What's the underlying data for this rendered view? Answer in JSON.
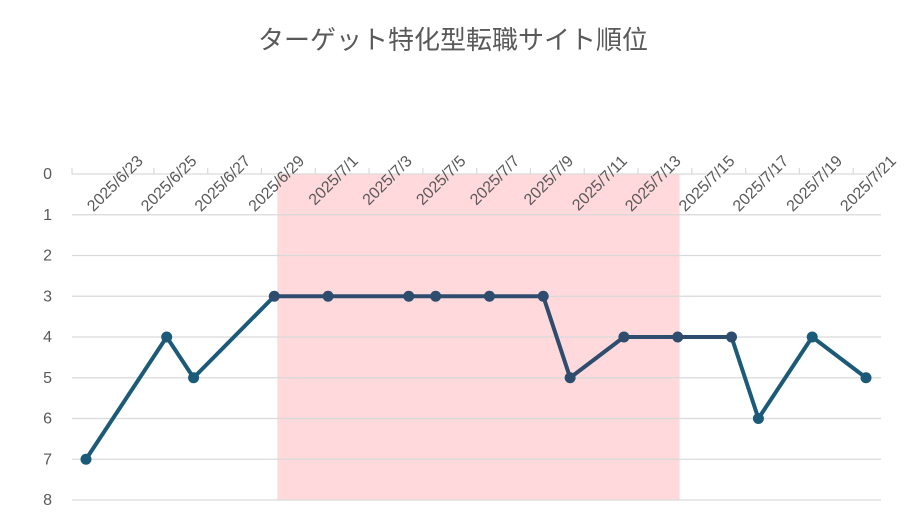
{
  "chart_data": {
    "type": "line",
    "title": "ターゲット特化型転職サイト順位",
    "xlabel": "",
    "ylabel": "",
    "x_ticks": [
      "2025/6/23",
      "2025/6/25",
      "2025/6/27",
      "2025/6/29",
      "2025/7/1",
      "2025/7/3",
      "2025/7/5",
      "2025/7/7",
      "2025/7/9",
      "2025/7/11",
      "2025/7/13",
      "2025/7/15",
      "2025/7/17",
      "2025/7/19",
      "2025/7/21"
    ],
    "y_ticks": [
      "0",
      "1",
      "2",
      "3",
      "4",
      "5",
      "6",
      "7",
      "8"
    ],
    "ylim": [
      0,
      8
    ],
    "y_inverted": true,
    "xlim": [
      "2025/6/22",
      "2025/7/22"
    ],
    "grid": true,
    "highlight": {
      "from": "2025/6/29",
      "to": "2025/7/15",
      "color": "#ffd9db"
    },
    "series": [
      {
        "color_primary": "#1b5a78",
        "color_highlight": "#2e4d6e",
        "points": [
          {
            "x": "2025/6/22",
            "y": 7
          },
          {
            "x": "2025/6/25",
            "y": 4
          },
          {
            "x": "2025/6/26",
            "y": 5
          },
          {
            "x": "2025/6/29",
            "y": 3
          },
          {
            "x": "2025/7/1",
            "y": 3
          },
          {
            "x": "2025/7/4",
            "y": 3
          },
          {
            "x": "2025/7/5",
            "y": 3
          },
          {
            "x": "2025/7/7",
            "y": 3
          },
          {
            "x": "2025/7/9",
            "y": 3
          },
          {
            "x": "2025/7/10",
            "y": 5
          },
          {
            "x": "2025/7/12",
            "y": 4
          },
          {
            "x": "2025/7/14",
            "y": 4
          },
          {
            "x": "2025/7/16",
            "y": 4
          },
          {
            "x": "2025/7/17",
            "y": 6
          },
          {
            "x": "2025/7/19",
            "y": 4
          },
          {
            "x": "2025/7/21",
            "y": 5
          }
        ]
      }
    ]
  }
}
